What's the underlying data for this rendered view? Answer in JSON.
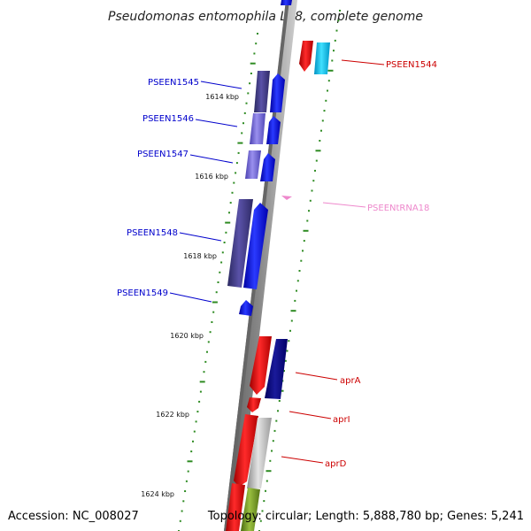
{
  "title": "Pseudomonas entomophila L48, complete genome",
  "footer": {
    "accession": "Accession: NC_008027",
    "topology": "Topology: circular; Length: 5,888,780 bp; Genes: 5,241"
  },
  "colors": {
    "backbone_dark": "#6e6e6e",
    "tick_green": "#2e8b22",
    "reverse_label": "#0000cc",
    "forward_label": "#cc0000",
    "trna_label": "#ee88cc"
  },
  "kbp_labels": [
    "1614 kbp",
    "1616 kbp",
    "1618 kbp",
    "1620 kbp",
    "1622 kbp",
    "1624 kbp"
  ],
  "gene_labels": {
    "pseen1545": "PSEEN1545",
    "pseen1546": "PSEEN1546",
    "pseen1547": "PSEEN1547",
    "pseen1548": "PSEEN1548",
    "pseen1549": "PSEEN1549",
    "pseen1544": "PSEEN1544",
    "trna18": "PSEENtRNA18",
    "aprA": "aprA",
    "aprI": "aprI",
    "aprD": "aprD"
  }
}
